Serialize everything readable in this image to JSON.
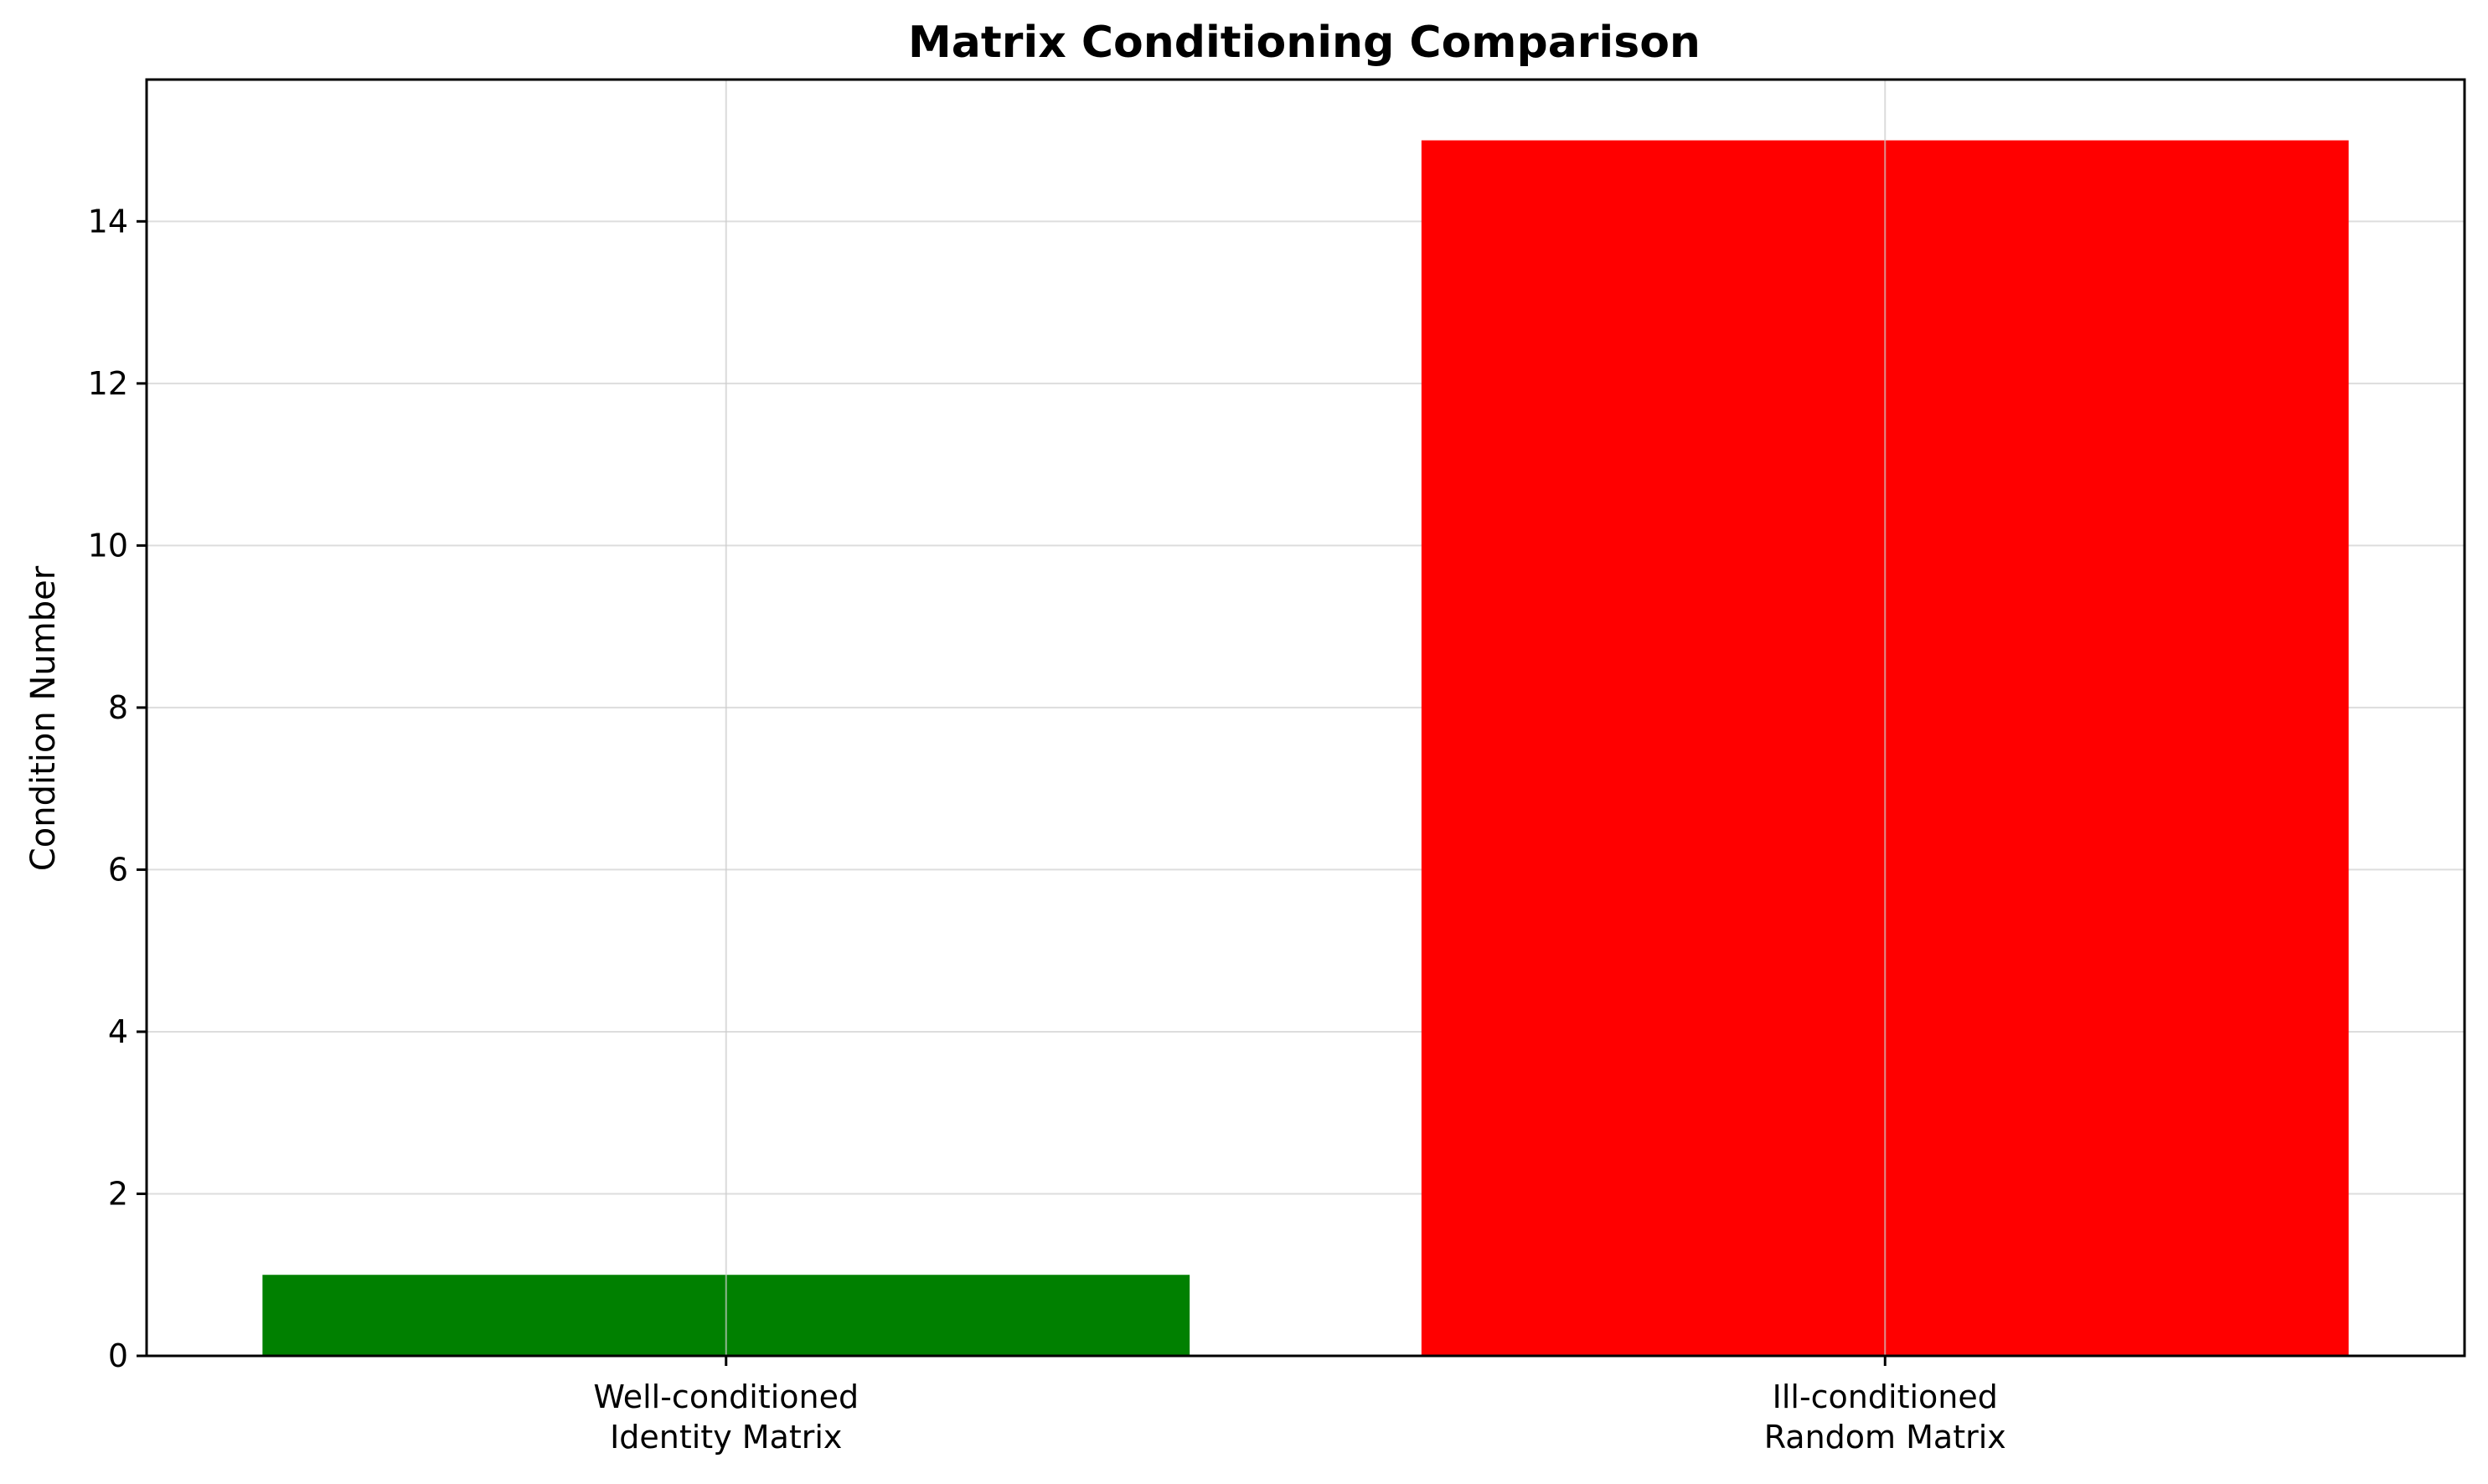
{
  "chart_data": {
    "type": "bar",
    "title": "Matrix Conditioning Comparison",
    "xlabel": "",
    "ylabel": "Condition Number",
    "categories": [
      [
        "Well-conditioned",
        "Identity Matrix"
      ],
      [
        "Ill-conditioned",
        "Random Matrix"
      ]
    ],
    "values": [
      1.0,
      15.0
    ],
    "colors": [
      "#008000",
      "#ff0000"
    ],
    "ylim": [
      0,
      15.75
    ],
    "yticks": [
      0,
      2,
      4,
      6,
      8,
      10,
      12,
      14
    ],
    "grid": true,
    "legend": "none"
  }
}
